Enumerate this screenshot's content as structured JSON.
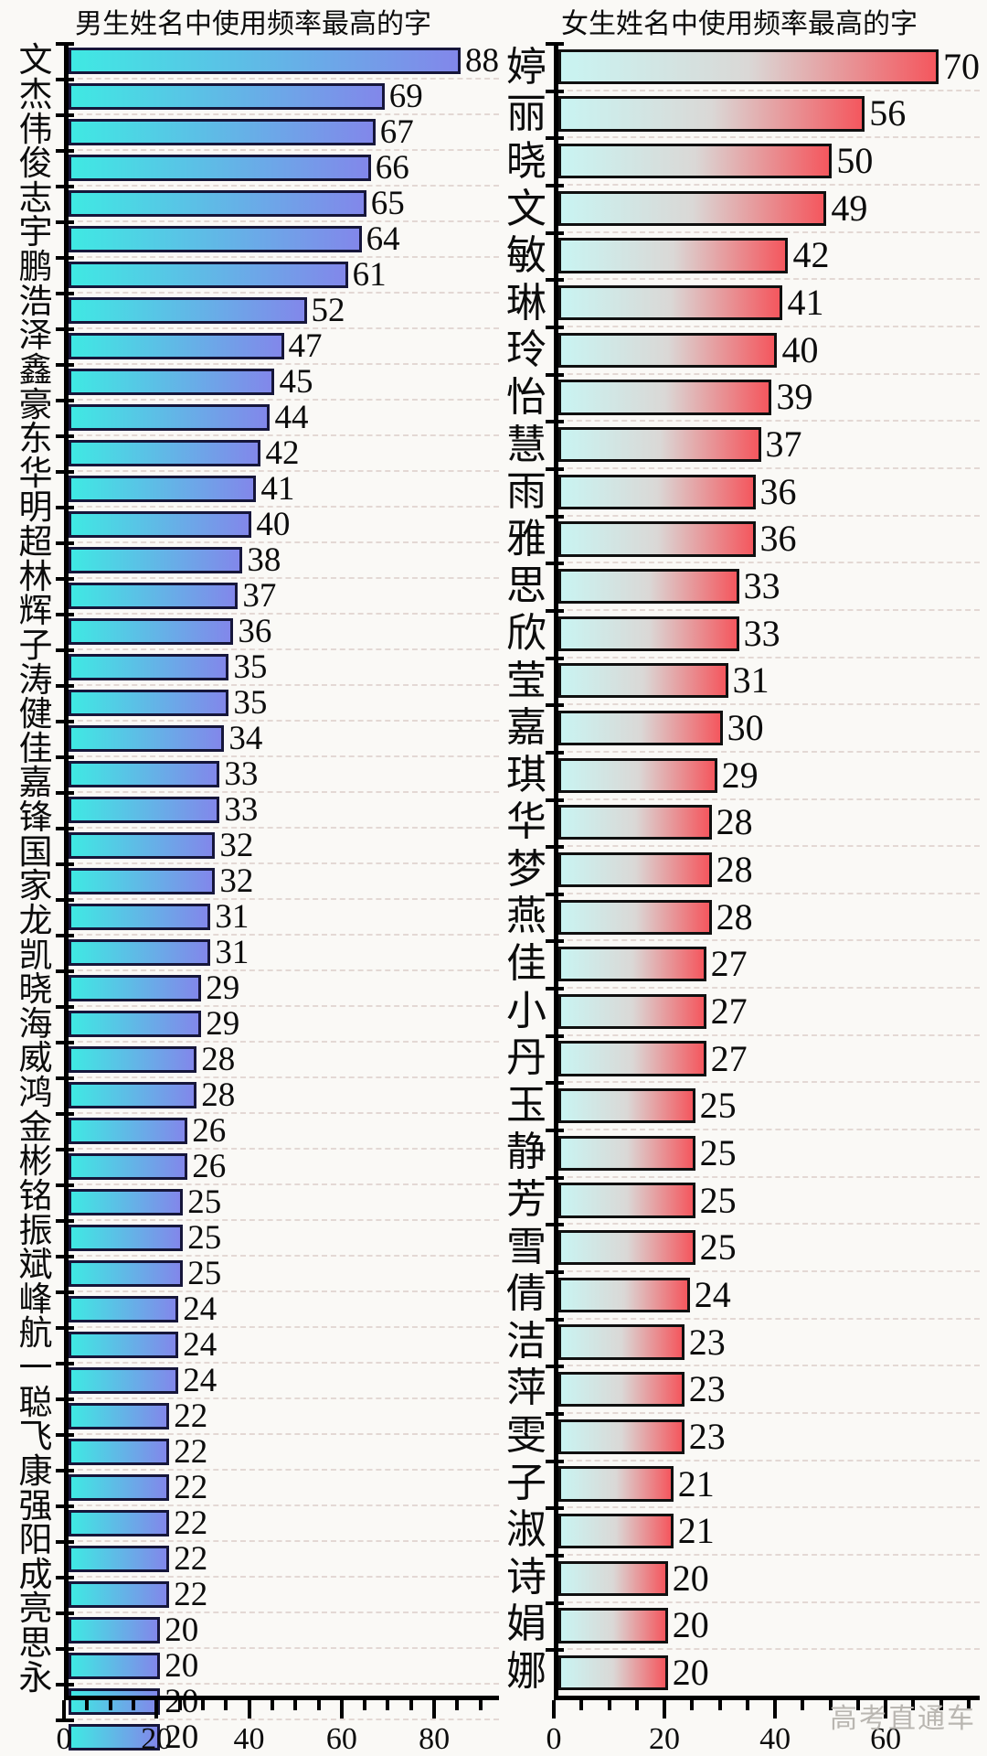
{
  "watermark": "高考直通车",
  "chart_data": [
    {
      "type": "bar",
      "orientation": "horizontal",
      "title": "男生姓名中使用频率最高的字",
      "categories": [
        "文",
        "杰",
        "伟",
        "俊",
        "志",
        "宇",
        "鹏",
        "浩",
        "泽",
        "鑫",
        "豪",
        "东",
        "华",
        "明",
        "超",
        "林",
        "辉",
        "子",
        "涛",
        "健",
        "佳",
        "嘉",
        "锋",
        "国",
        "家",
        "龙",
        "凯",
        "晓",
        "海",
        "威",
        "鸿",
        "金",
        "彬",
        "铭",
        "振",
        "斌",
        "峰",
        "航",
        "一",
        "聪",
        "飞",
        "康",
        "强",
        "阳",
        "成",
        "亮",
        "思",
        "永"
      ],
      "values": [
        88,
        69,
        67,
        66,
        65,
        64,
        61,
        52,
        47,
        45,
        44,
        42,
        41,
        40,
        38,
        37,
        36,
        35,
        35,
        34,
        33,
        33,
        32,
        32,
        31,
        31,
        29,
        29,
        28,
        28,
        26,
        26,
        25,
        25,
        25,
        24,
        24,
        24,
        22,
        22,
        22,
        22,
        22,
        22,
        20,
        20,
        20,
        20
      ],
      "xlabel": "",
      "ylabel": "",
      "xlim": [
        0,
        94
      ],
      "x_ticks": [
        0,
        20,
        40,
        60,
        80
      ],
      "minor_tick_step": 5,
      "grid": "dashed-horizontal",
      "legend": "none",
      "bar_gradient": [
        "#3fe9e3",
        "#8287ea"
      ],
      "bar_border": "#16163a"
    },
    {
      "type": "bar",
      "orientation": "horizontal",
      "title": "女生姓名中使用频率最高的字",
      "categories": [
        "婷",
        "丽",
        "晓",
        "文",
        "敏",
        "琳",
        "玲",
        "怡",
        "慧",
        "雨",
        "雅",
        "思",
        "欣",
        "莹",
        "嘉",
        "琪",
        "华",
        "梦",
        "燕",
        "佳",
        "小",
        "丹",
        "玉",
        "静",
        "芳",
        "雪",
        "倩",
        "洁",
        "萍",
        "雯",
        "子",
        "淑",
        "诗",
        "娟",
        "娜"
      ],
      "values": [
        70,
        56,
        50,
        49,
        42,
        41,
        40,
        39,
        37,
        36,
        36,
        33,
        33,
        31,
        30,
        29,
        28,
        28,
        28,
        27,
        27,
        27,
        25,
        25,
        25,
        25,
        24,
        23,
        23,
        23,
        21,
        21,
        20,
        20,
        20
      ],
      "xlabel": "",
      "ylabel": "",
      "xlim": [
        0,
        77
      ],
      "x_ticks": [
        0,
        20,
        40,
        60
      ],
      "minor_tick_step": 5,
      "grid": "dashed-horizontal",
      "legend": "none",
      "bar_gradient": [
        "#c9f4f2",
        "#dad8d6",
        "#f4575e"
      ],
      "bar_border": "#101010"
    }
  ]
}
